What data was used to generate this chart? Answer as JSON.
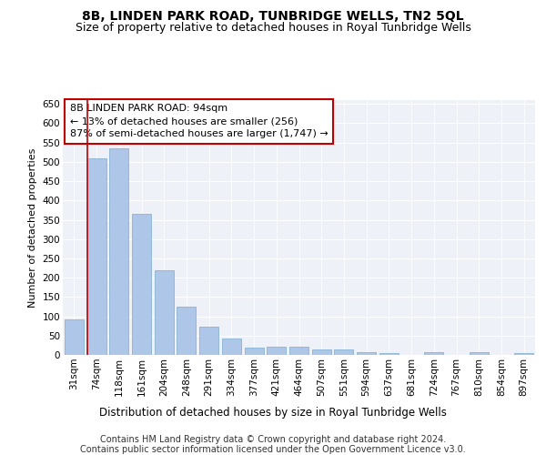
{
  "title": "8B, LINDEN PARK ROAD, TUNBRIDGE WELLS, TN2 5QL",
  "subtitle": "Size of property relative to detached houses in Royal Tunbridge Wells",
  "xlabel": "Distribution of detached houses by size in Royal Tunbridge Wells",
  "ylabel": "Number of detached properties",
  "categories": [
    "31sqm",
    "74sqm",
    "118sqm",
    "161sqm",
    "204sqm",
    "248sqm",
    "291sqm",
    "334sqm",
    "377sqm",
    "421sqm",
    "464sqm",
    "507sqm",
    "551sqm",
    "594sqm",
    "637sqm",
    "681sqm",
    "724sqm",
    "767sqm",
    "810sqm",
    "854sqm",
    "897sqm"
  ],
  "values": [
    93,
    510,
    535,
    365,
    220,
    125,
    72,
    42,
    20,
    21,
    21,
    13,
    13,
    8,
    4,
    0,
    7,
    0,
    7,
    0,
    5
  ],
  "bar_color": "#aec6e8",
  "bar_edge_color": "#7aabcd",
  "highlight_color": "#c00000",
  "highlight_index": 1,
  "annotation_text": "8B LINDEN PARK ROAD: 94sqm\n← 13% of detached houses are smaller (256)\n87% of semi-detached houses are larger (1,747) →",
  "ylim": [
    0,
    660
  ],
  "yticks": [
    0,
    50,
    100,
    150,
    200,
    250,
    300,
    350,
    400,
    450,
    500,
    550,
    600,
    650
  ],
  "background_color": "#eef2f8",
  "footer_text": "Contains HM Land Registry data © Crown copyright and database right 2024.\nContains public sector information licensed under the Open Government Licence v3.0.",
  "title_fontsize": 10,
  "subtitle_fontsize": 9,
  "xlabel_fontsize": 8.5,
  "ylabel_fontsize": 8,
  "tick_fontsize": 7.5,
  "annotation_fontsize": 8,
  "footer_fontsize": 7
}
